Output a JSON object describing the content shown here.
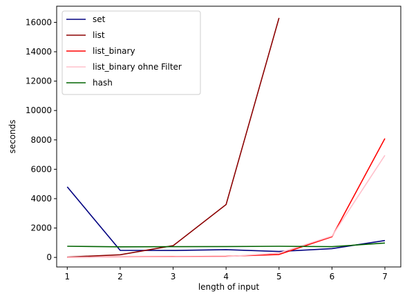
{
  "chart_data": {
    "type": "line",
    "xlabel": "length of input",
    "ylabel": "seconds",
    "xlim": [
      0.8,
      7.3
    ],
    "ylim": [
      -650,
      17100
    ],
    "xticks": [
      1,
      2,
      3,
      4,
      5,
      6,
      7
    ],
    "yticks": [
      0,
      2000,
      4000,
      6000,
      8000,
      10000,
      12000,
      14000,
      16000
    ],
    "grid": false,
    "legend_position": "top-left",
    "series": [
      {
        "name": "set",
        "color": "#000080",
        "x": [
          1,
          2,
          3,
          4,
          5,
          6,
          7
        ],
        "y": [
          4800,
          480,
          470,
          530,
          400,
          600,
          1150
        ]
      },
      {
        "name": "list",
        "color": "#8b0000",
        "x": [
          1,
          2,
          3,
          4,
          5
        ],
        "y": [
          20,
          180,
          800,
          3600,
          16300
        ]
      },
      {
        "name": "list_binary",
        "color": "#ff0000",
        "x": [
          1,
          2,
          3,
          4,
          5,
          6,
          7
        ],
        "y": [
          5,
          40,
          50,
          80,
          200,
          1400,
          8100
        ]
      },
      {
        "name": "list_binary ohne Filter",
        "color": "#ffc0cb",
        "x": [
          1,
          2,
          3,
          4,
          5,
          6,
          7
        ],
        "y": [
          5,
          30,
          30,
          50,
          300,
          1450,
          6950
        ]
      },
      {
        "name": "hash",
        "color": "#006400",
        "x": [
          1,
          2,
          3,
          4,
          5,
          6,
          7
        ],
        "y": [
          760,
          720,
          730,
          740,
          760,
          730,
          980
        ]
      }
    ]
  }
}
